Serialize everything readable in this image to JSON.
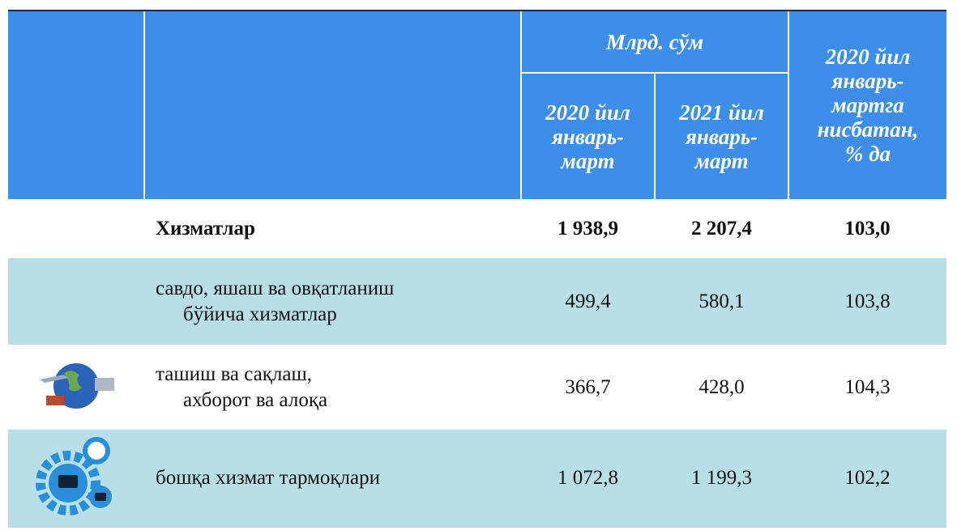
{
  "table": {
    "header": {
      "unit": "Млрд. сўм",
      "col1": [
        "2020 йил",
        "январь-",
        "март"
      ],
      "col2": [
        "2021 йил",
        "январь-",
        "март"
      ],
      "col3": [
        "2020 йил",
        "январь-",
        "мартга",
        "нисбатан,",
        "% да"
      ]
    },
    "rows": [
      {
        "label": [
          "Хизматлар"
        ],
        "values": [
          "1 938,9",
          "2 207,4",
          "103,0"
        ]
      },
      {
        "label": [
          "савдо, яшаш ва овқатланиш",
          "бўйича хизматлар"
        ],
        "values": [
          "499,4",
          "580,1",
          "103,8"
        ]
      },
      {
        "label": [
          "ташиш ва сақлаш,",
          "ахборот ва алоқа"
        ],
        "values": [
          "366,7",
          "428,0",
          "104,3"
        ]
      },
      {
        "label": [
          "бошқа хизмат тармоқлари"
        ],
        "values": [
          "1 072,8",
          "1 199,3",
          "102,2"
        ]
      }
    ]
  }
}
